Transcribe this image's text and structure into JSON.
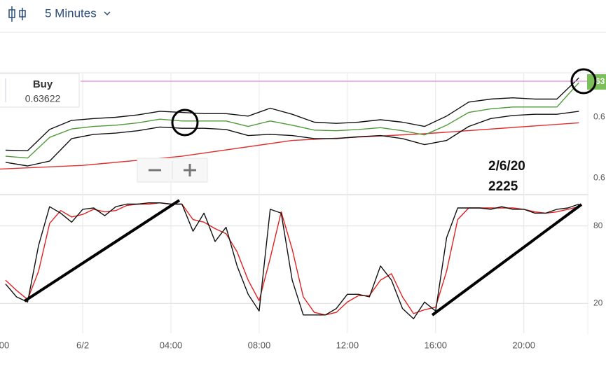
{
  "toolbar": {
    "timeframe": "5 Minutes"
  },
  "order_panel": {
    "side": "Buy",
    "price": "0.63622"
  },
  "price_tag": "63",
  "annotation": {
    "date": "2/6/20",
    "time": "2225"
  },
  "chart_data": [
    {
      "type": "line",
      "x": [
        -3.5,
        -2.5,
        -1.5,
        -0.5,
        0.5,
        1.5,
        2.5,
        3.5,
        4.5,
        5.5,
        6.5,
        7.5,
        8.5,
        9.5,
        10.5,
        11.5,
        12.5,
        13.5,
        14.5,
        15.5,
        16.5,
        17.5,
        18.5,
        19.5,
        20.5,
        21.5,
        22.5
      ],
      "xlim": [
        -3.75,
        22.9
      ],
      "ylim": [
        0.63424,
        0.63622
      ],
      "yticks": [
        {
          "value": 0.6355,
          "label": "0.6"
        },
        {
          "value": 0.6345,
          "label": "0.6"
        }
      ],
      "series": [
        {
          "color": "#e03030",
          "x": [
            -3.75,
            0,
            4.5,
            9.5,
            15.5,
            22.5
          ],
          "values": [
            0.63465,
            0.63471,
            0.63486,
            0.63512,
            0.63523,
            0.63541
          ]
        },
        {
          "color": "#111111",
          "values": [
            0.63496,
            0.63495,
            0.6353,
            0.63545,
            0.63548,
            0.6355,
            0.63554,
            0.6356,
            0.63558,
            0.63556,
            0.63556,
            0.63552,
            0.63565,
            0.63555,
            0.63542,
            0.6354,
            0.63542,
            0.63546,
            0.63542,
            0.63535,
            0.63552,
            0.63575,
            0.6358,
            0.63582,
            0.6358,
            0.6358,
            0.63615
          ]
        },
        {
          "color": "#111111",
          "values": [
            0.63476,
            0.6347,
            0.63478,
            0.63515,
            0.63522,
            0.63524,
            0.63528,
            0.63534,
            0.63532,
            0.63532,
            0.6353,
            0.6352,
            0.63522,
            0.6352,
            0.63515,
            0.63515,
            0.63518,
            0.6352,
            0.63515,
            0.63505,
            0.63512,
            0.63535,
            0.63548,
            0.63553,
            0.63555,
            0.63555,
            0.6356
          ]
        },
        {
          "color": "#4f9a3a",
          "values": [
            0.63486,
            0.63483,
            0.63517,
            0.63531,
            0.63535,
            0.63537,
            0.63541,
            0.63547,
            0.63544,
            0.63544,
            0.63544,
            0.63535,
            0.63544,
            0.63537,
            0.63529,
            0.63528,
            0.6353,
            0.63533,
            0.63528,
            0.63521,
            0.63537,
            0.63558,
            0.63564,
            0.63567,
            0.63567,
            0.63567,
            0.63607
          ]
        }
      ]
    },
    {
      "type": "line",
      "x": [
        -3.5,
        -3,
        -2.5,
        -2,
        -1.5,
        -1,
        -0.5,
        0,
        0.5,
        1,
        1.5,
        2,
        2.5,
        3,
        3.5,
        4,
        4.5,
        5,
        5.5,
        6,
        6.5,
        7,
        7.5,
        8,
        8.5,
        9,
        9.5,
        10,
        10.5,
        11,
        11.5,
        12,
        12.5,
        13,
        13.5,
        14,
        14.5,
        15,
        15.5,
        16,
        16.5,
        17,
        17.5,
        18,
        18.5,
        19,
        19.5,
        20,
        20.5,
        21,
        21.5,
        22,
        22.5
      ],
      "xlim": [
        -3.75,
        22.9
      ],
      "ylim": [
        0,
        100
      ],
      "yticks": [
        80,
        20
      ],
      "xticks": [
        {
          "value": -4,
          "label": "00"
        },
        {
          "value": 0,
          "label": "6/2"
        },
        {
          "value": 4,
          "label": "04:00"
        },
        {
          "value": 8,
          "label": "08:00"
        },
        {
          "value": 12,
          "label": "12:00"
        },
        {
          "value": 16,
          "label": "16:00"
        },
        {
          "value": 20,
          "label": "20:00"
        }
      ],
      "grid": true,
      "series": [
        {
          "color": "#e02020",
          "values": [
            38,
            30,
            23,
            45,
            82,
            92,
            87,
            89,
            93,
            91,
            92,
            96,
            97,
            97,
            98,
            97,
            97,
            85,
            83,
            78,
            74,
            60,
            38,
            22,
            55,
            91,
            62,
            25,
            13,
            11,
            13,
            21,
            26,
            26,
            38,
            43,
            25,
            12,
            15,
            17,
            45,
            85,
            94,
            94,
            94,
            94,
            94,
            93,
            91,
            90,
            91,
            93,
            95
          ]
        },
        {
          "color": "#111111",
          "values": [
            35,
            25,
            21,
            65,
            95,
            90,
            83,
            93,
            94,
            88,
            95,
            97,
            97,
            98,
            98,
            97,
            97,
            76,
            90,
            68,
            79,
            49,
            27,
            14,
            93,
            90,
            38,
            11,
            11,
            11,
            16,
            27,
            27,
            25,
            49,
            38,
            16,
            8,
            21,
            14,
            71,
            94,
            94,
            94,
            93,
            95,
            93,
            93,
            90,
            90,
            93,
            94,
            97
          ]
        }
      ]
    }
  ]
}
